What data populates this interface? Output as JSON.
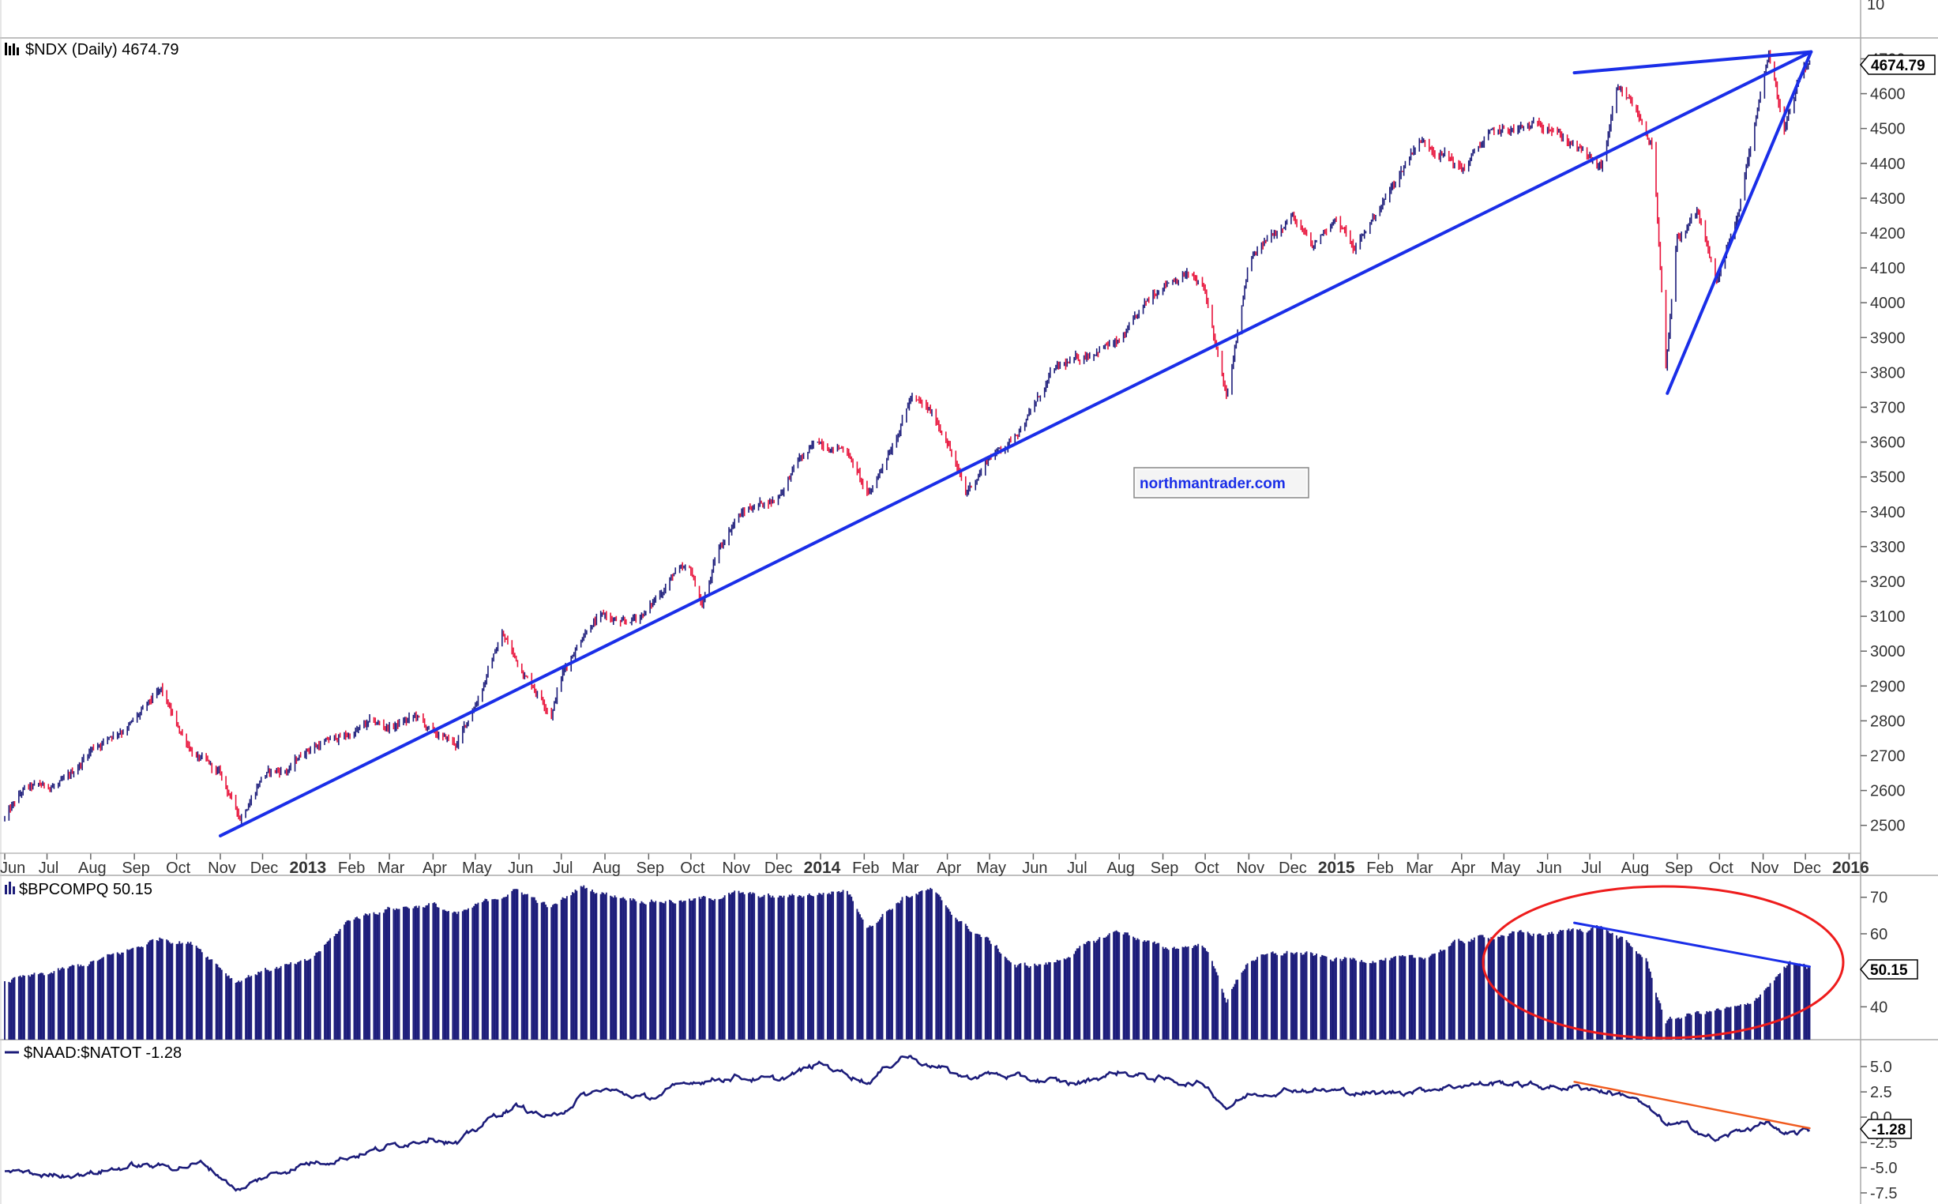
{
  "panels": {
    "top_partial": {
      "axis_label": "10"
    },
    "ndx": {
      "title_icon": "bar-chart-icon",
      "title": "$NDX (Daily) 4674.79",
      "last_value": "4674.79",
      "watermark": "northmantrader.com",
      "last_marker_color": "#0000ff"
    },
    "bpcompq": {
      "title_icon": "histogram-icon",
      "title": "$BPCOMPQ 50.15",
      "last_value": "50.15"
    },
    "naad": {
      "title_icon": "line-icon",
      "title": "$NAAD:$NATOT -1.28",
      "last_value": "-1.28"
    }
  },
  "x_axis": {
    "labels": [
      {
        "text": "Jun",
        "year": false
      },
      {
        "text": "Jul",
        "year": false
      },
      {
        "text": "Aug",
        "year": false
      },
      {
        "text": "Sep",
        "year": false
      },
      {
        "text": "Oct",
        "year": false
      },
      {
        "text": "Nov",
        "year": false
      },
      {
        "text": "Dec",
        "year": false
      },
      {
        "text": "2013",
        "year": true
      },
      {
        "text": "Feb",
        "year": false
      },
      {
        "text": "Mar",
        "year": false
      },
      {
        "text": "Apr",
        "year": false
      },
      {
        "text": "May",
        "year": false
      },
      {
        "text": "Jun",
        "year": false
      },
      {
        "text": "Jul",
        "year": false
      },
      {
        "text": "Aug",
        "year": false
      },
      {
        "text": "Sep",
        "year": false
      },
      {
        "text": "Oct",
        "year": false
      },
      {
        "text": "Nov",
        "year": false
      },
      {
        "text": "Dec",
        "year": false
      },
      {
        "text": "2014",
        "year": true
      },
      {
        "text": "Feb",
        "year": false
      },
      {
        "text": "Mar",
        "year": false
      },
      {
        "text": "Apr",
        "year": false
      },
      {
        "text": "May",
        "year": false
      },
      {
        "text": "Jun",
        "year": false
      },
      {
        "text": "Jul",
        "year": false
      },
      {
        "text": "Aug",
        "year": false
      },
      {
        "text": "Sep",
        "year": false
      },
      {
        "text": "Oct",
        "year": false
      },
      {
        "text": "Nov",
        "year": false
      },
      {
        "text": "Dec",
        "year": false
      },
      {
        "text": "2015",
        "year": true
      },
      {
        "text": "Feb",
        "year": false
      },
      {
        "text": "Mar",
        "year": false
      },
      {
        "text": "Apr",
        "year": false
      },
      {
        "text": "May",
        "year": false
      },
      {
        "text": "Jun",
        "year": false
      },
      {
        "text": "Jul",
        "year": false
      },
      {
        "text": "Aug",
        "year": false
      },
      {
        "text": "Sep",
        "year": false
      },
      {
        "text": "Oct",
        "year": false
      },
      {
        "text": "Nov",
        "year": false
      },
      {
        "text": "Dec",
        "year": false
      },
      {
        "text": "2016",
        "year": true
      }
    ]
  },
  "chart_data": [
    {
      "type": "line",
      "name": "$NDX (Daily) 4674.79",
      "ylim": [
        2420,
        4760
      ],
      "y_ticks": [
        2500,
        2600,
        2700,
        2800,
        2900,
        3000,
        3100,
        3200,
        3300,
        3400,
        3500,
        3600,
        3700,
        3800,
        3900,
        4000,
        4100,
        4200,
        4300,
        4400,
        4500,
        4600,
        4700
      ],
      "series": [
        {
          "x": [
            "2012-06-01",
            "2012-06-15",
            "2012-07-01",
            "2012-07-15",
            "2012-08-01",
            "2012-08-15",
            "2012-09-01",
            "2012-09-20",
            "2012-10-01",
            "2012-10-15",
            "2012-11-01",
            "2012-11-15",
            "2012-12-01",
            "2012-12-20",
            "2013-01-01",
            "2013-01-15",
            "2013-02-01",
            "2013-02-15",
            "2013-03-01",
            "2013-03-20",
            "2013-04-01",
            "2013-04-18",
            "2013-05-01",
            "2013-05-20",
            "2013-06-01",
            "2013-06-24",
            "2013-07-01",
            "2013-07-20",
            "2013-08-01",
            "2013-08-15",
            "2013-09-01",
            "2013-09-20",
            "2013-10-01",
            "2013-10-09",
            "2013-10-20",
            "2013-11-01",
            "2013-11-15",
            "2013-12-01",
            "2013-12-15",
            "2014-01-01",
            "2014-01-20",
            "2014-02-04",
            "2014-02-20",
            "2014-03-06",
            "2014-03-20",
            "2014-04-01",
            "2014-04-14",
            "2014-05-01",
            "2014-05-15",
            "2014-06-01",
            "2014-06-15",
            "2014-07-01",
            "2014-07-20",
            "2014-08-01",
            "2014-08-15",
            "2014-09-01",
            "2014-09-18",
            "2014-10-01",
            "2014-10-16",
            "2014-10-25",
            "2014-11-01",
            "2014-11-15",
            "2014-12-01",
            "2014-12-16",
            "2015-01-01",
            "2015-01-15",
            "2015-02-01",
            "2015-02-15",
            "2015-03-01",
            "2015-03-20",
            "2015-04-01",
            "2015-04-20",
            "2015-05-01",
            "2015-05-20",
            "2015-06-01",
            "2015-06-20",
            "2015-07-09",
            "2015-07-20",
            "2015-08-01",
            "2015-08-15",
            "2015-08-24",
            "2015-09-01",
            "2015-09-15",
            "2015-09-29",
            "2015-10-15",
            "2015-11-01",
            "2015-11-05",
            "2015-11-16",
            "2015-11-30",
            "2015-12-04"
          ],
          "values": [
            2520,
            2600,
            2610,
            2620,
            2720,
            2760,
            2800,
            2880,
            2780,
            2700,
            2640,
            2520,
            2650,
            2660,
            2720,
            2740,
            2760,
            2790,
            2780,
            2810,
            2760,
            2730,
            2850,
            3050,
            2960,
            2830,
            2930,
            3080,
            3100,
            3070,
            3120,
            3230,
            3220,
            3130,
            3280,
            3380,
            3420,
            3440,
            3540,
            3600,
            3580,
            3440,
            3590,
            3730,
            3680,
            3610,
            3450,
            3560,
            3600,
            3700,
            3800,
            3830,
            3880,
            3880,
            3960,
            4060,
            4090,
            4030,
            3720,
            3930,
            4110,
            4180,
            4260,
            4150,
            4250,
            4150,
            4270,
            4360,
            4470,
            4430,
            4380,
            4480,
            4490,
            4500,
            4520,
            4450,
            4380,
            4600,
            4560,
            4450,
            3800,
            4180,
            4250,
            4060,
            4260,
            4650,
            4720,
            4500,
            4670,
            4675
          ]
        }
      ],
      "trendlines": [
        {
          "x": [
            "2012-11-01",
            "2015-12-05"
          ],
          "y": [
            2470,
            4720
          ]
        },
        {
          "x": [
            "2015-06-20",
            "2015-12-05"
          ],
          "y": [
            4660,
            4720
          ]
        },
        {
          "x": [
            "2015-08-25",
            "2015-12-05"
          ],
          "y": [
            3740,
            4720
          ]
        }
      ]
    },
    {
      "type": "bar",
      "name": "$BPCOMPQ 50.15",
      "ylim": [
        31,
        76
      ],
      "y_ticks": [
        40,
        50,
        60,
        70
      ],
      "series": [
        {
          "x": [
            "2012-06-01",
            "2012-07-01",
            "2012-08-01",
            "2012-09-01",
            "2012-09-20",
            "2012-10-15",
            "2012-11-12",
            "2012-12-01",
            "2013-01-01",
            "2013-01-15",
            "2013-02-01",
            "2013-03-01",
            "2013-04-01",
            "2013-04-18",
            "2013-05-15",
            "2013-06-01",
            "2013-06-24",
            "2013-07-15",
            "2013-08-01",
            "2013-09-01",
            "2013-10-01",
            "2013-11-01",
            "2013-12-01",
            "2014-01-01",
            "2014-01-20",
            "2014-02-04",
            "2014-03-01",
            "2014-03-20",
            "2014-04-14",
            "2014-05-01",
            "2014-05-20",
            "2014-06-15",
            "2014-07-15",
            "2014-08-01",
            "2014-09-01",
            "2014-10-01",
            "2014-10-16",
            "2014-11-01",
            "2014-12-01",
            "2015-01-01",
            "2015-02-01",
            "2015-03-01",
            "2015-04-01",
            "2015-05-01",
            "2015-06-01",
            "2015-07-09",
            "2015-07-25",
            "2015-08-10",
            "2015-08-24",
            "2015-09-10",
            "2015-09-29",
            "2015-10-20",
            "2015-11-05",
            "2015-11-20",
            "2015-12-04"
          ],
          "values": [
            47,
            49,
            52,
            56,
            59,
            57,
            47,
            50,
            52,
            57,
            64,
            67,
            68,
            65,
            70,
            72,
            67,
            73,
            71,
            69,
            69,
            71,
            70,
            71,
            72,
            62,
            70,
            72,
            62,
            58,
            51,
            52,
            58,
            61,
            56,
            57,
            42,
            53,
            55,
            53,
            53,
            53,
            58,
            60,
            60,
            62,
            58,
            53,
            36,
            38,
            39,
            40,
            46,
            52,
            50.15
          ]
        }
      ],
      "trendlines": [
        {
          "x": [
            "2015-06-20",
            "2015-12-04"
          ],
          "y": [
            63,
            51
          ]
        }
      ],
      "annotations": [
        {
          "type": "ellipse",
          "color": "#ee1c1c"
        }
      ]
    },
    {
      "type": "line",
      "name": "$NAAD:$NATOT -1.28",
      "ylim": [
        -8.6,
        7.2
      ],
      "y_ticks": [
        -7.5,
        -5.0,
        -2.5,
        0.0,
        2.5,
        5.0
      ],
      "series": [
        {
          "x": [
            "2012-06-01",
            "2012-07-01",
            "2012-08-01",
            "2012-09-01",
            "2012-10-01",
            "2012-10-20",
            "2012-11-15",
            "2012-12-01",
            "2013-01-01",
            "2013-02-01",
            "2013-03-01",
            "2013-04-01",
            "2013-04-18",
            "2013-05-15",
            "2013-06-01",
            "2013-06-24",
            "2013-07-15",
            "2013-08-01",
            "2013-09-01",
            "2013-10-01",
            "2013-11-01",
            "2013-12-01",
            "2014-01-01",
            "2014-02-04",
            "2014-03-01",
            "2014-04-14",
            "2014-05-01",
            "2014-06-01",
            "2014-07-01",
            "2014-08-01",
            "2014-09-01",
            "2014-10-01",
            "2014-10-16",
            "2014-11-01",
            "2014-12-01",
            "2015-01-01",
            "2015-02-01",
            "2015-03-01",
            "2015-04-01",
            "2015-05-01",
            "2015-06-01",
            "2015-07-01",
            "2015-08-01",
            "2015-08-24",
            "2015-09-10",
            "2015-09-29",
            "2015-10-20",
            "2015-11-05",
            "2015-11-16",
            "2015-12-04"
          ],
          "values": [
            -5.2,
            -5.8,
            -5.5,
            -4.8,
            -4.9,
            -4.6,
            -7.3,
            -6.0,
            -4.6,
            -3.9,
            -2.9,
            -1.9,
            -2.7,
            0.2,
            1.1,
            -0.2,
            2.0,
            2.7,
            1.8,
            3.5,
            4.0,
            3.6,
            5.3,
            3.5,
            6.2,
            3.9,
            4.3,
            3.7,
            3.3,
            4.5,
            3.7,
            3.2,
            1.0,
            2.2,
            2.8,
            2.6,
            2.3,
            2.7,
            3.2,
            3.4,
            3.0,
            2.9,
            2.0,
            -0.7,
            -0.9,
            -2.3,
            -1.1,
            -0.5,
            -2.0,
            -1.28
          ]
        }
      ],
      "trendlines": [
        {
          "x": [
            "2015-06-20",
            "2015-12-04"
          ],
          "y": [
            3.5,
            -1.1
          ]
        }
      ]
    }
  ]
}
